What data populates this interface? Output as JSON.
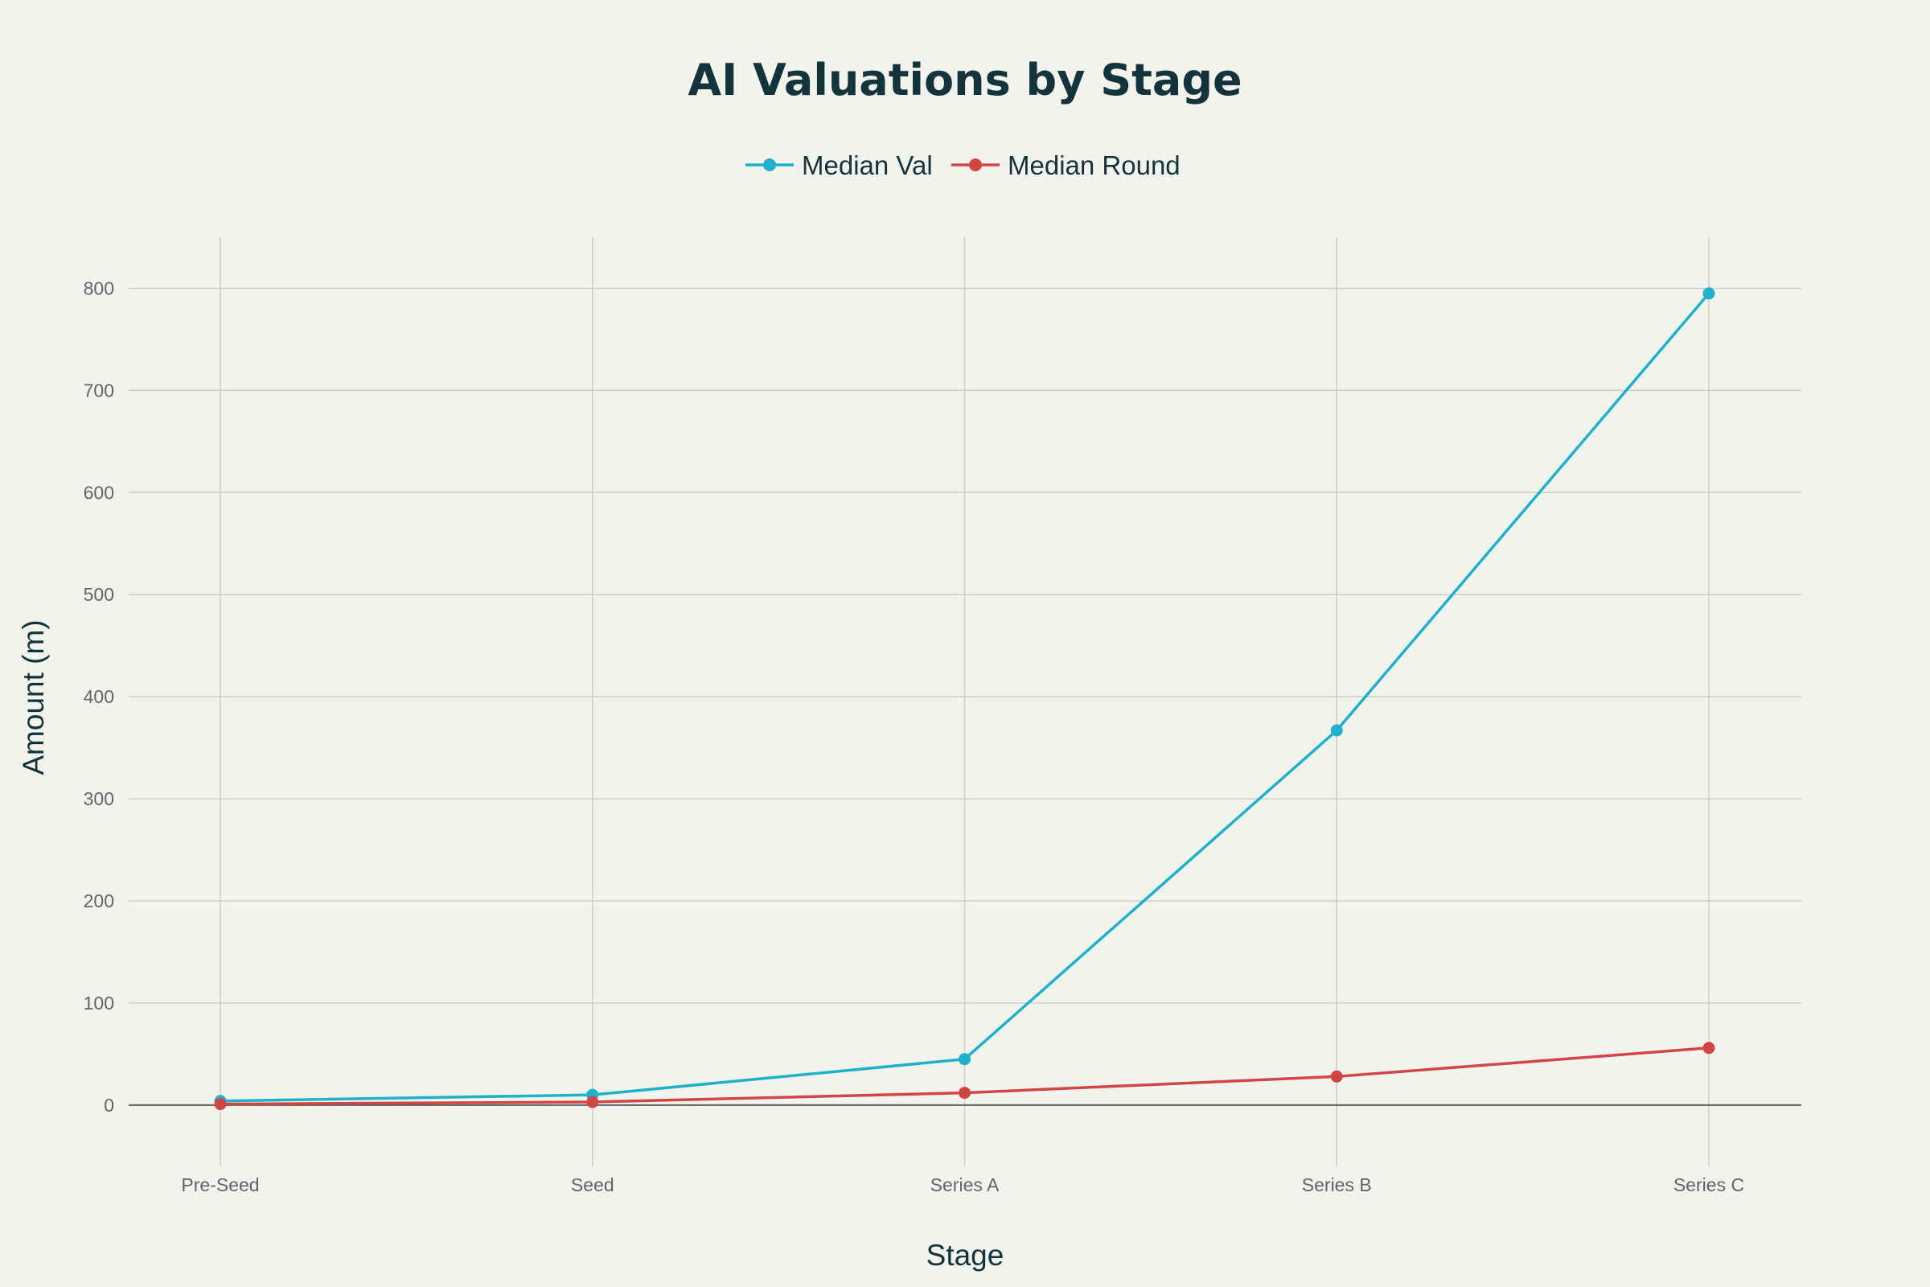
{
  "chart_data": {
    "type": "line",
    "title": "AI Valuations by Stage",
    "xlabel": "Stage",
    "ylabel": "Amount (m)",
    "categories": [
      "Pre-Seed",
      "Seed",
      "Series A",
      "Series B",
      "Series C"
    ],
    "ylim": [
      -60,
      850
    ],
    "yticks": [
      0,
      100,
      200,
      300,
      400,
      500,
      600,
      700,
      800
    ],
    "grid": true,
    "legend_position": "top-center",
    "series": [
      {
        "name": "Median Val",
        "color": "#1fb1c9",
        "values": [
          4,
          10,
          45,
          367,
          795
        ]
      },
      {
        "name": "Median Round",
        "color": "#d24545",
        "values": [
          1,
          3,
          12,
          28,
          56
        ]
      }
    ]
  }
}
